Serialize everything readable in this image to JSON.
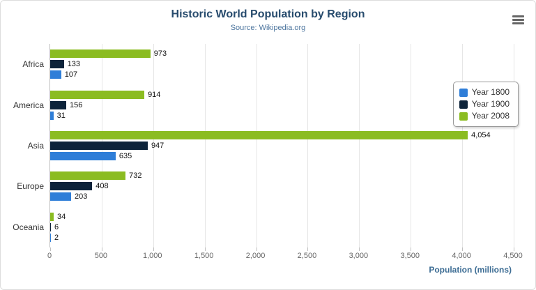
{
  "chart": {
    "title": "Historic World Population by Region",
    "subtitle": "Source: Wikipedia.org",
    "xlabel": "Population (millions)",
    "menu_icon": "hamburger-icon"
  },
  "chart_data": {
    "type": "bar",
    "orientation": "horizontal",
    "title": "Historic World Population by Region",
    "subtitle": "Source: Wikipedia.org",
    "xlabel": "Population (millions)",
    "categories": [
      "Africa",
      "America",
      "Asia",
      "Europe",
      "Oceania"
    ],
    "series": [
      {
        "name": "Year 1800",
        "color": "#2f7ed8",
        "values": [
          107,
          31,
          635,
          203,
          2
        ]
      },
      {
        "name": "Year 1900",
        "color": "#0d233a",
        "values": [
          133,
          156,
          947,
          408,
          6
        ]
      },
      {
        "name": "Year 2008",
        "color": "#8bbc21",
        "values": [
          973,
          914,
          4054,
          732,
          34
        ]
      }
    ],
    "xlim": [
      0,
      4500
    ],
    "xticks": [
      0,
      500,
      1000,
      1500,
      2000,
      2500,
      3000,
      3500,
      4000,
      4500
    ],
    "tick_labels": [
      "0",
      "500",
      "1,000",
      "1,500",
      "2,000",
      "2,500",
      "3,000",
      "3,500",
      "4,000",
      "4,500"
    ],
    "grid": true,
    "legend_position": "right",
    "data_labels": true
  }
}
